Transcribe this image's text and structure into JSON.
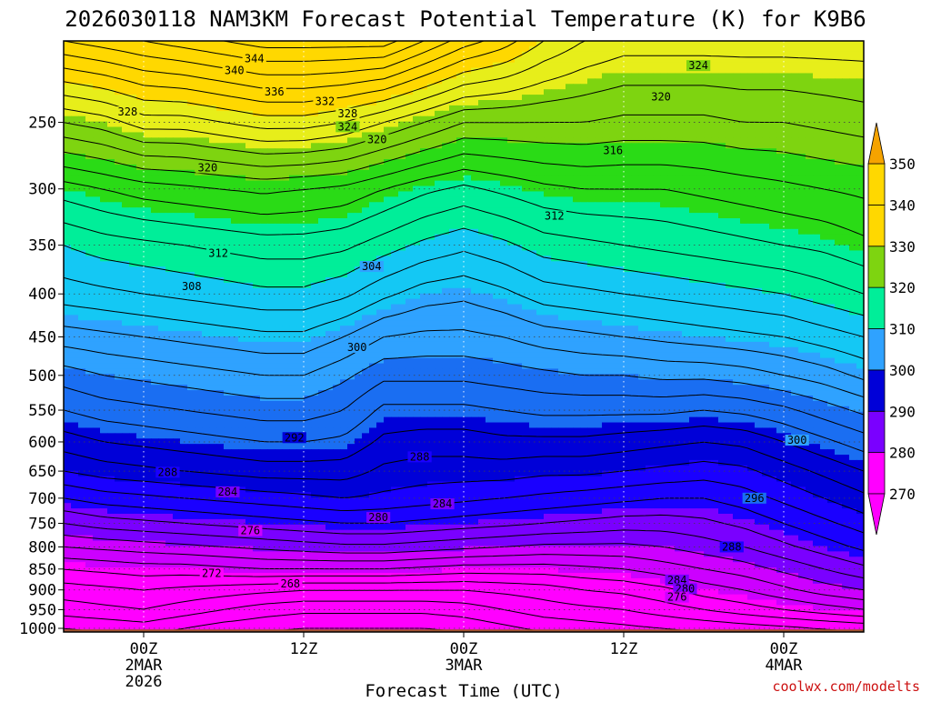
{
  "chart_data": {
    "type": "heatmap",
    "title": "2026030118 NAM3KM Forecast Potential Temperature (K) for K9B6",
    "xlabel": "Forecast Time (UTC)",
    "ylabel": "",
    "credit": "coolwx.com/modelts",
    "y_scale": "pressure (hPa), decreasing upward",
    "y_range_hpa": [
      1010,
      200
    ],
    "y_ticks": [
      {
        "label": "250",
        "p": 250
      },
      {
        "label": "300",
        "p": 300
      },
      {
        "label": "350",
        "p": 350
      },
      {
        "label": "400",
        "p": 400
      },
      {
        "label": "450",
        "p": 450
      },
      {
        "label": "500",
        "p": 500
      },
      {
        "label": "550",
        "p": 550
      },
      {
        "label": "600",
        "p": 600
      },
      {
        "label": "650",
        "p": 650
      },
      {
        "label": "700",
        "p": 700
      },
      {
        "label": "750",
        "p": 750
      },
      {
        "label": "800",
        "p": 800
      },
      {
        "label": "850",
        "p": 850
      },
      {
        "label": "900",
        "p": 900
      },
      {
        "label": "950",
        "p": 950
      },
      {
        "label": "1000",
        "p": 1000
      }
    ],
    "x_range_hours": [
      -6,
      54
    ],
    "x_ticks": [
      {
        "hour": 0,
        "lines": [
          "00Z",
          "2MAR",
          "2026"
        ]
      },
      {
        "hour": 12,
        "lines": [
          "12Z"
        ]
      },
      {
        "hour": 24,
        "lines": [
          "00Z",
          "3MAR"
        ]
      },
      {
        "hour": 36,
        "lines": [
          "12Z"
        ]
      },
      {
        "hour": 48,
        "lines": [
          "00Z",
          "4MAR"
        ]
      }
    ],
    "grid": true,
    "colorbar": {
      "levels": [
        270,
        280,
        290,
        300,
        310,
        320,
        330,
        340,
        350
      ],
      "labels": [
        "270",
        "280",
        "290",
        "300",
        "310",
        "320",
        "330",
        "340",
        "350"
      ],
      "band_colors": [
        "#ff00ff",
        "#cc00ff",
        "#7a00ff",
        "#1a00ff",
        "#0000d8",
        "#1a6ef2",
        "#2fa2ff",
        "#14c8f4",
        "#00ee99",
        "#2adb16",
        "#7ed410",
        "#e7ee1a",
        "#ffd800"
      ],
      "extends": "both",
      "top_arrow_color": "#f5a300",
      "bottom_arrow_color": "#ff00ff",
      "tick_labels": [
        "350",
        "340",
        "330",
        "320",
        "310",
        "300",
        "290",
        "280",
        "270"
      ]
    },
    "contour_interval_k": 2,
    "levels_k": [
      264,
      266,
      268,
      270,
      272,
      274,
      276,
      278,
      280,
      282,
      284,
      286,
      288,
      290,
      292,
      294,
      296,
      298,
      300,
      302,
      304,
      306,
      308,
      310,
      312,
      314,
      316,
      318,
      320,
      322,
      324,
      326,
      328,
      330,
      332,
      334,
      336,
      338,
      340,
      342,
      344,
      346,
      348
    ],
    "theta_profile_pressures_hpa": [
      1010,
      1000,
      950,
      900,
      850,
      800,
      750,
      700,
      650,
      600,
      550,
      500,
      450,
      400,
      350,
      300,
      250,
      200
    ],
    "theta_profiles": [
      {
        "hour": -6,
        "theta_k": [
          265.5,
          266,
          269,
          271,
          274,
          278,
          282,
          286,
          290,
          293,
          296,
          299,
          303,
          307,
          310,
          315,
          324,
          336
        ]
      },
      {
        "hour": -3,
        "theta_k": [
          266,
          266.5,
          269.5,
          271.5,
          274.5,
          278.5,
          283,
          287,
          291,
          294,
          297,
          300,
          303.5,
          307.5,
          311,
          316,
          325,
          337
        ]
      },
      {
        "hour": 0,
        "theta_k": [
          266.5,
          267,
          270,
          272,
          275,
          279,
          283.5,
          287.5,
          291.5,
          294.5,
          297.5,
          300.5,
          304,
          308,
          311.5,
          317,
          327,
          338
        ]
      },
      {
        "hour": 3,
        "theta_k": [
          265.5,
          266,
          269,
          271.5,
          275,
          279.5,
          284,
          288,
          292,
          295,
          298,
          301,
          304.5,
          308.5,
          312,
          317.5,
          327,
          339
        ]
      },
      {
        "hour": 6,
        "theta_k": [
          264.5,
          265,
          268,
          271,
          275.5,
          280,
          284.5,
          288.5,
          292.5,
          295.5,
          298.5,
          301.5,
          305,
          309,
          312.5,
          318,
          328,
          340
        ]
      },
      {
        "hour": 9,
        "theta_k": [
          264,
          264.5,
          267,
          270.5,
          276,
          280.5,
          285,
          289,
          293,
          296,
          299,
          302,
          305.5,
          309.5,
          313,
          318.5,
          329,
          341
        ]
      },
      {
        "hour": 12,
        "theta_k": [
          263.5,
          264,
          266.5,
          270,
          276,
          281,
          285.5,
          289.5,
          293,
          296,
          299,
          302,
          305.5,
          309.5,
          313,
          318,
          329,
          341
        ]
      },
      {
        "hour": 15,
        "theta_k": [
          263.5,
          264,
          266.5,
          270,
          276,
          281.5,
          286,
          290,
          293,
          295.5,
          298,
          300.5,
          304,
          308.5,
          312.5,
          317.5,
          328,
          341
        ]
      },
      {
        "hour": 18,
        "theta_k": [
          263.5,
          264,
          266.5,
          270,
          276,
          281.5,
          286,
          289.5,
          291.5,
          293.5,
          295.5,
          298.5,
          302,
          306.5,
          311,
          316,
          326,
          341
        ]
      },
      {
        "hour": 21,
        "theta_k": [
          263.5,
          264,
          266.5,
          270,
          275.5,
          281,
          285.5,
          289,
          291,
          293,
          295.5,
          298.5,
          301.5,
          305,
          309.5,
          314.5,
          324,
          338
        ]
      },
      {
        "hour": 24,
        "theta_k": [
          264,
          264.5,
          267,
          270,
          275,
          280.5,
          285,
          288.5,
          291,
          293,
          295.5,
          298.5,
          301.5,
          304.5,
          308.5,
          313.5,
          322,
          335
        ]
      },
      {
        "hour": 27,
        "theta_k": [
          265,
          265.5,
          268,
          270.5,
          275,
          280,
          284.5,
          288,
          291,
          293.5,
          296,
          299,
          302,
          305.5,
          309.5,
          314.5,
          322,
          333
        ]
      },
      {
        "hour": 30,
        "theta_k": [
          266,
          266.5,
          269,
          271,
          275,
          279.5,
          284,
          287.5,
          290.5,
          293.5,
          296.5,
          299.5,
          303,
          307,
          311,
          315.5,
          322,
          330
        ]
      },
      {
        "hour": 33,
        "theta_k": [
          266.5,
          267,
          269.5,
          272,
          275.5,
          279.5,
          283.5,
          287,
          290.5,
          293.5,
          296.5,
          300,
          303.5,
          307.5,
          311.5,
          316,
          322,
          328
        ]
      },
      {
        "hour": 36,
        "theta_k": [
          267,
          267.5,
          270,
          272.5,
          276,
          279.5,
          283,
          286.5,
          290,
          293,
          296.5,
          300,
          304,
          308,
          312,
          316,
          321.5,
          327
        ]
      },
      {
        "hour": 39,
        "theta_k": [
          267.5,
          268,
          271,
          273.5,
          277,
          280,
          283,
          286,
          289.5,
          292.5,
          296.5,
          300.5,
          304.5,
          308.5,
          312.5,
          316,
          321.5,
          327
        ]
      },
      {
        "hour": 42,
        "theta_k": [
          268,
          268.5,
          272,
          275,
          278,
          281,
          283.5,
          286,
          289,
          292,
          296,
          300.5,
          305,
          309,
          313,
          316.5,
          321.5,
          327
        ]
      },
      {
        "hour": 45,
        "theta_k": [
          268.5,
          269,
          273,
          276,
          279,
          282,
          284.5,
          287,
          289.5,
          292.5,
          296.5,
          301,
          305.5,
          309.5,
          313.5,
          317,
          322,
          327
        ]
      },
      {
        "hour": 48,
        "theta_k": [
          269,
          269.5,
          274,
          277.5,
          280.5,
          283.5,
          286,
          288.5,
          291,
          294,
          297.5,
          302,
          306,
          310,
          314,
          317.5,
          322,
          327
        ]
      },
      {
        "hour": 51,
        "theta_k": [
          269.5,
          270,
          275,
          279,
          282,
          285,
          287.5,
          290,
          292.5,
          295.5,
          299,
          303,
          307,
          311,
          314.5,
          318,
          322.5,
          327
        ]
      },
      {
        "hour": 54,
        "theta_k": [
          270,
          270.5,
          276,
          280,
          283.5,
          286.5,
          289,
          291.5,
          294,
          297,
          300.5,
          304.5,
          308,
          312,
          315.5,
          318.5,
          323,
          327
        ]
      }
    ],
    "labeled_contours_k": [
      {
        "text": "344",
        "hour": 8.3,
        "p": 210
      },
      {
        "text": "340",
        "hour": 6.8,
        "p": 217
      },
      {
        "text": "336",
        "hour": 9.8,
        "p": 230
      },
      {
        "text": "332",
        "hour": 13.6,
        "p": 236
      },
      {
        "text": "328",
        "hour": -1.2,
        "p": 243
      },
      {
        "text": "328",
        "hour": 15.3,
        "p": 244
      },
      {
        "text": "324",
        "hour": 15.3,
        "p": 253
      },
      {
        "text": "324",
        "hour": 41.6,
        "p": 214
      },
      {
        "text": "320",
        "hour": 17.5,
        "p": 262
      },
      {
        "text": "320",
        "hour": 38.8,
        "p": 233
      },
      {
        "text": "320",
        "hour": 4.8,
        "p": 283
      },
      {
        "text": "316",
        "hour": 35.2,
        "p": 270
      },
      {
        "text": "312",
        "hour": 30.8,
        "p": 323
      },
      {
        "text": "312",
        "hour": 5.6,
        "p": 358
      },
      {
        "text": "308",
        "hour": 3.6,
        "p": 392
      },
      {
        "text": "304",
        "hour": 17.1,
        "p": 371
      },
      {
        "text": "300",
        "hour": 16.0,
        "p": 463
      },
      {
        "text": "300",
        "hour": 49.0,
        "p": 597
      },
      {
        "text": "296",
        "hour": 45.8,
        "p": 700
      },
      {
        "text": "292",
        "hour": 11.3,
        "p": 593
      },
      {
        "text": "288",
        "hour": 20.7,
        "p": 625
      },
      {
        "text": "288",
        "hour": 1.8,
        "p": 652
      },
      {
        "text": "288",
        "hour": 44.1,
        "p": 800
      },
      {
        "text": "284",
        "hour": 6.3,
        "p": 688
      },
      {
        "text": "284",
        "hour": 22.4,
        "p": 711
      },
      {
        "text": "284",
        "hour": 40.0,
        "p": 876
      },
      {
        "text": "280",
        "hour": 17.6,
        "p": 738
      },
      {
        "text": "280",
        "hour": 40.6,
        "p": 897
      },
      {
        "text": "276",
        "hour": 8.0,
        "p": 765
      },
      {
        "text": "276",
        "hour": 40.0,
        "p": 918
      },
      {
        "text": "272",
        "hour": 5.1,
        "p": 860
      },
      {
        "text": "268",
        "hour": 11.0,
        "p": 885
      }
    ],
    "surface_band_color": "#a0522d"
  }
}
